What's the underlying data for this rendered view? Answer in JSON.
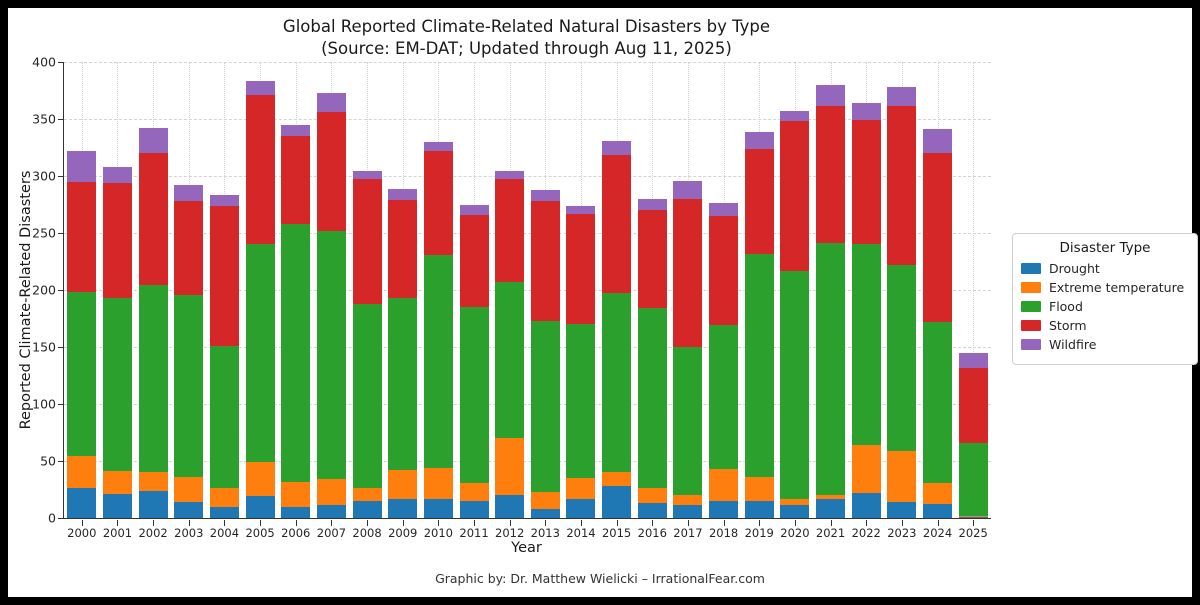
{
  "page": {
    "title_line1": "Global Reported Climate-Related Natural Disasters by Type",
    "title_line2": "(Source: EM-DAT; Updated through Aug 11, 2025)",
    "caption": "Graphic by: Dr. Matthew Wielicki – IrrationalFear.com"
  },
  "colors": {
    "drought": "#1f77b4",
    "extreme_temperature": "#ff7f0e",
    "flood": "#2ca02c",
    "storm": "#d62728",
    "wildfire": "#9467bd",
    "grid": "#d4d4d4",
    "axis": "#333333",
    "frame": "#000000",
    "background": "#ffffff"
  },
  "legend": {
    "title": "Disaster Type",
    "position": "right",
    "items": [
      {
        "label": "Drought",
        "color": "#1f77b4"
      },
      {
        "label": "Extreme temperature",
        "color": "#ff7f0e"
      },
      {
        "label": "Flood",
        "color": "#2ca02c"
      },
      {
        "label": "Storm",
        "color": "#d62728"
      },
      {
        "label": "Wildfire",
        "color": "#9467bd"
      }
    ]
  },
  "chart_data": {
    "type": "bar",
    "stacked": true,
    "title": "Global Reported Climate-Related Natural Disasters by Type (Source: EM-DAT; Updated through Aug 11, 2025)",
    "xlabel": "Year",
    "ylabel": "Reported Climate-Related Disasters",
    "ylim": [
      0,
      400
    ],
    "yticks": [
      0,
      50,
      100,
      150,
      200,
      250,
      300,
      350,
      400
    ],
    "grid": true,
    "categories": [
      "2000",
      "2001",
      "2002",
      "2003",
      "2004",
      "2005",
      "2006",
      "2007",
      "2008",
      "2009",
      "2010",
      "2011",
      "2012",
      "2013",
      "2014",
      "2015",
      "2016",
      "2017",
      "2018",
      "2019",
      "2020",
      "2021",
      "2022",
      "2023",
      "2024",
      "2025"
    ],
    "series": [
      {
        "name": "Drought",
        "color": "#1f77b4",
        "values": [
          26,
          21,
          24,
          14,
          10,
          19,
          10,
          11,
          15,
          17,
          17,
          15,
          20,
          8,
          17,
          28,
          13,
          11,
          15,
          15,
          11,
          17,
          22,
          14,
          12,
          1
        ]
      },
      {
        "name": "Extreme temperature",
        "color": "#ff7f0e",
        "values": [
          28,
          20,
          16,
          22,
          16,
          30,
          22,
          23,
          11,
          25,
          27,
          16,
          50,
          15,
          18,
          12,
          13,
          9,
          28,
          21,
          6,
          3,
          42,
          45,
          19,
          1
        ]
      },
      {
        "name": "Flood",
        "color": "#2ca02c",
        "values": [
          144,
          152,
          164,
          160,
          125,
          191,
          226,
          218,
          162,
          151,
          187,
          154,
          137,
          150,
          135,
          157,
          158,
          130,
          126,
          196,
          200,
          221,
          176,
          163,
          141,
          64
        ]
      },
      {
        "name": "Storm",
        "color": "#d62728",
        "values": [
          97,
          101,
          116,
          82,
          123,
          131,
          77,
          104,
          109,
          86,
          91,
          81,
          90,
          105,
          97,
          121,
          86,
          130,
          96,
          92,
          131,
          120,
          109,
          139,
          148,
          66
        ]
      },
      {
        "name": "Wildfire",
        "color": "#9467bd",
        "values": [
          27,
          14,
          22,
          14,
          9,
          12,
          10,
          17,
          7,
          10,
          8,
          9,
          7,
          10,
          7,
          13,
          10,
          16,
          11,
          15,
          9,
          19,
          15,
          17,
          21,
          13
        ]
      }
    ],
    "totals": [
      322,
      308,
      342,
      292,
      283,
      383,
      345,
      373,
      304,
      289,
      330,
      275,
      304,
      288,
      274,
      331,
      280,
      296,
      276,
      339,
      357,
      380,
      364,
      378,
      341,
      145
    ]
  }
}
